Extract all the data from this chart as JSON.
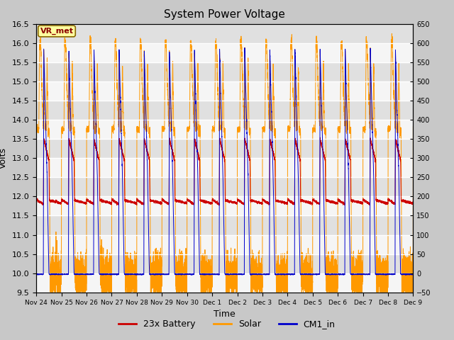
{
  "title": "System Power Voltage",
  "xlabel": "Time",
  "ylabel_left": "Volts",
  "ylim_left": [
    9.5,
    16.5
  ],
  "ylim_right": [
    -50,
    650
  ],
  "yticks_left": [
    9.5,
    10.0,
    10.5,
    11.0,
    11.5,
    12.0,
    12.5,
    13.0,
    13.5,
    14.0,
    14.5,
    15.0,
    15.5,
    16.0,
    16.5
  ],
  "yticks_right": [
    -50,
    0,
    50,
    100,
    150,
    200,
    250,
    300,
    350,
    400,
    450,
    500,
    550,
    600,
    650
  ],
  "x_tick_labels": [
    "Nov 24",
    "Nov 25",
    "Nov 26",
    "Nov 27",
    "Nov 28",
    "Nov 29",
    "Nov 30",
    "Dec 1",
    "Dec 2",
    "Dec 3",
    "Dec 4",
    "Dec 5",
    "Dec 6",
    "Dec 7",
    "Dec 8",
    "Dec 9"
  ],
  "legend_labels": [
    "23x Battery",
    "Solar",
    "CM1_in"
  ],
  "legend_colors": [
    "#cc0000",
    "#ff9900",
    "#0000cc"
  ],
  "bg_color": "#d0d0d0",
  "plot_bg_light": "#f5f5f5",
  "plot_bg_dark": "#e0e0e0",
  "grid_color": "#ffffff"
}
